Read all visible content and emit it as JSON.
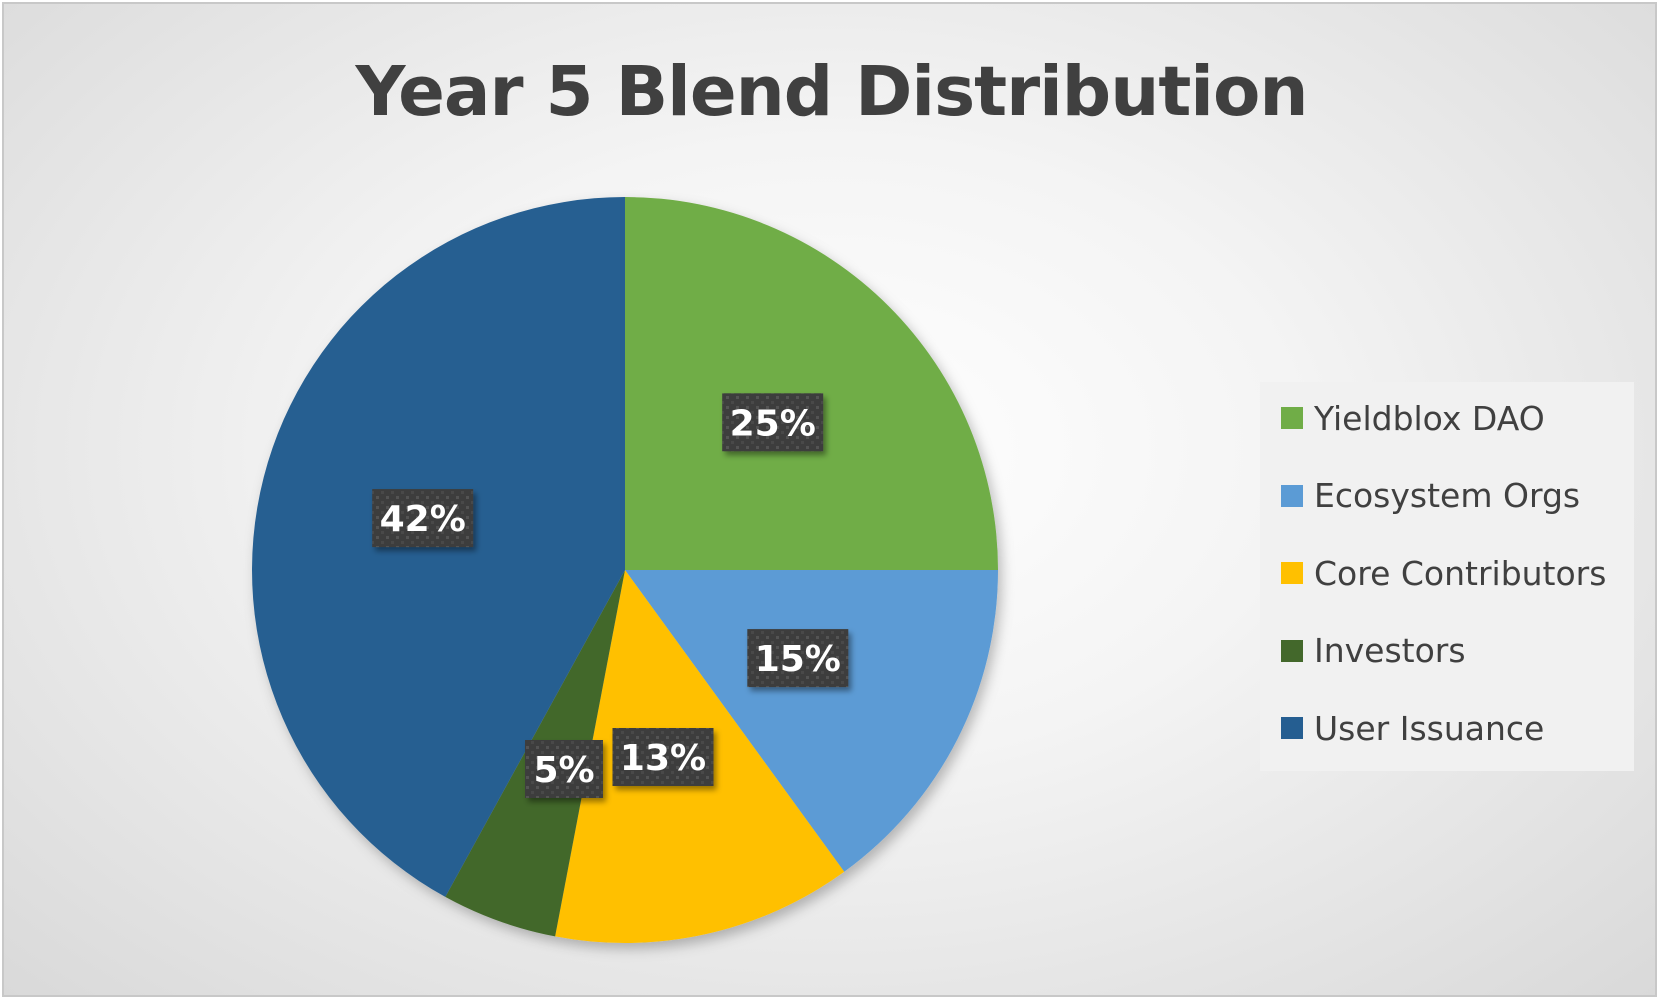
{
  "chart_data": {
    "type": "pie",
    "title": "Year 5 Blend Distribution",
    "categories": [
      "Yieldblox DAO",
      "Ecosystem Orgs",
      "Core Contributors",
      "Investors",
      "User Issuance"
    ],
    "values": [
      25,
      15,
      13,
      5,
      42
    ],
    "data_labels": [
      "25%",
      "15%",
      "13%",
      "5%",
      "42%"
    ],
    "colors": [
      "#70AD47",
      "#5B9BD5",
      "#FFC000",
      "#43682B",
      "#255E91"
    ],
    "start_angle": "12 o'clock",
    "direction": "clockwise",
    "legend_position": "right"
  }
}
